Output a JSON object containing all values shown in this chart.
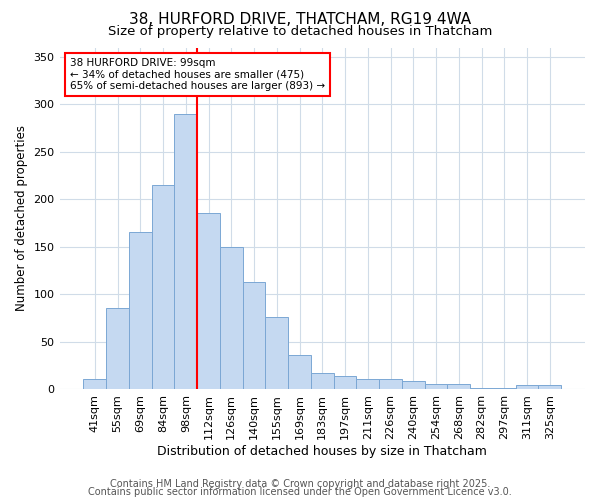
{
  "title1": "38, HURFORD DRIVE, THATCHAM, RG19 4WA",
  "title2": "Size of property relative to detached houses in Thatcham",
  "xlabel": "Distribution of detached houses by size in Thatcham",
  "ylabel": "Number of detached properties",
  "categories": [
    "41sqm",
    "55sqm",
    "69sqm",
    "84sqm",
    "98sqm",
    "112sqm",
    "126sqm",
    "140sqm",
    "155sqm",
    "169sqm",
    "183sqm",
    "197sqm",
    "211sqm",
    "226sqm",
    "240sqm",
    "254sqm",
    "268sqm",
    "282sqm",
    "297sqm",
    "311sqm",
    "325sqm"
  ],
  "values": [
    10,
    85,
    165,
    215,
    290,
    185,
    150,
    113,
    76,
    36,
    17,
    14,
    11,
    10,
    8,
    5,
    5,
    1,
    1,
    4,
    4
  ],
  "bar_color": "#c5d9f1",
  "bar_edge_color": "#7ba7d4",
  "red_line_x": 4.5,
  "ylim": [
    0,
    360
  ],
  "yticks": [
    0,
    50,
    100,
    150,
    200,
    250,
    300,
    350
  ],
  "annotation_text": "38 HURFORD DRIVE: 99sqm\n← 34% of detached houses are smaller (475)\n65% of semi-detached houses are larger (893) →",
  "annotation_box_color": "white",
  "annotation_box_edge": "red",
  "footer1": "Contains HM Land Registry data © Crown copyright and database right 2025.",
  "footer2": "Contains public sector information licensed under the Open Government Licence v3.0.",
  "bg_color": "#ffffff",
  "grid_color": "#d0dce8",
  "title1_fontsize": 11,
  "title2_fontsize": 9.5,
  "xlabel_fontsize": 9,
  "ylabel_fontsize": 8.5,
  "tick_fontsize": 8,
  "footer_fontsize": 7
}
